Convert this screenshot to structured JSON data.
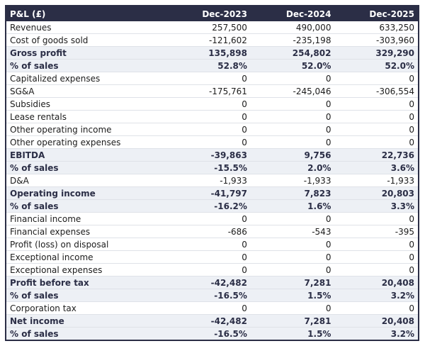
{
  "chart_data": {
    "type": "table",
    "title": "P&L (£)",
    "header": {
      "label": "P&L (£)",
      "columns": [
        "Dec-2023",
        "Dec-2024",
        "Dec-2025"
      ]
    },
    "rows": [
      {
        "label": "Revenues",
        "values": [
          "257,500",
          "490,000",
          "633,250"
        ],
        "emphasis": false
      },
      {
        "label": "Cost of goods sold",
        "values": [
          "-121,602",
          "-235,198",
          "-303,960"
        ],
        "emphasis": false
      },
      {
        "label": "Gross profit",
        "values": [
          "135,898",
          "254,802",
          "329,290"
        ],
        "emphasis": true
      },
      {
        "label": "% of sales",
        "values": [
          "52.8%",
          "52.0%",
          "52.0%"
        ],
        "emphasis": true
      },
      {
        "label": "Capitalized expenses",
        "values": [
          "0",
          "0",
          "0"
        ],
        "emphasis": false
      },
      {
        "label": "SG&A",
        "values": [
          "-175,761",
          "-245,046",
          "-306,554"
        ],
        "emphasis": false
      },
      {
        "label": "Subsidies",
        "values": [
          "0",
          "0",
          "0"
        ],
        "emphasis": false
      },
      {
        "label": "Lease rentals",
        "values": [
          "0",
          "0",
          "0"
        ],
        "emphasis": false
      },
      {
        "label": "Other operating income",
        "values": [
          "0",
          "0",
          "0"
        ],
        "emphasis": false
      },
      {
        "label": "Other operating expenses",
        "values": [
          "0",
          "0",
          "0"
        ],
        "emphasis": false
      },
      {
        "label": "EBITDA",
        "values": [
          "-39,863",
          "9,756",
          "22,736"
        ],
        "emphasis": true
      },
      {
        "label": "% of sales",
        "values": [
          "-15.5%",
          "2.0%",
          "3.6%"
        ],
        "emphasis": true
      },
      {
        "label": "D&A",
        "values": [
          "-1,933",
          "-1,933",
          "-1,933"
        ],
        "emphasis": false
      },
      {
        "label": "Operating income",
        "values": [
          "-41,797",
          "7,823",
          "20,803"
        ],
        "emphasis": true
      },
      {
        "label": "% of sales",
        "values": [
          "-16.2%",
          "1.6%",
          "3.3%"
        ],
        "emphasis": true
      },
      {
        "label": "Financial income",
        "values": [
          "0",
          "0",
          "0"
        ],
        "emphasis": false
      },
      {
        "label": "Financial expenses",
        "values": [
          "-686",
          "-543",
          "-395"
        ],
        "emphasis": false
      },
      {
        "label": "Profit (loss) on disposal",
        "values": [
          "0",
          "0",
          "0"
        ],
        "emphasis": false
      },
      {
        "label": "Exceptional income",
        "values": [
          "0",
          "0",
          "0"
        ],
        "emphasis": false
      },
      {
        "label": "Exceptional expenses",
        "values": [
          "0",
          "0",
          "0"
        ],
        "emphasis": false
      },
      {
        "label": "Profit before tax",
        "values": [
          "-42,482",
          "7,281",
          "20,408"
        ],
        "emphasis": true
      },
      {
        "label": "% of sales",
        "values": [
          "-16.5%",
          "1.5%",
          "3.2%"
        ],
        "emphasis": true
      },
      {
        "label": "Corporation tax",
        "values": [
          "0",
          "0",
          "0"
        ],
        "emphasis": false
      },
      {
        "label": "Net income",
        "values": [
          "-42,482",
          "7,281",
          "20,408"
        ],
        "emphasis": true
      },
      {
        "label": "% of sales",
        "values": [
          "-16.5%",
          "1.5%",
          "3.2%"
        ],
        "emphasis": true
      }
    ],
    "layout": {
      "grid": "horizontal row separators only",
      "value_alignment": "right",
      "emphasized_rows_shaded": true
    }
  },
  "colors": {
    "header_bg": "#2b2e46",
    "header_text": "#ffffff",
    "emphasis_row_bg": "#edf0f5",
    "emphasis_row_text": "#2b2e46",
    "normal_row_text": "#1c1c1c",
    "row_separator": "#dfe2e8",
    "outer_border": "#2b2e46",
    "page_bg": "#ffffff"
  }
}
